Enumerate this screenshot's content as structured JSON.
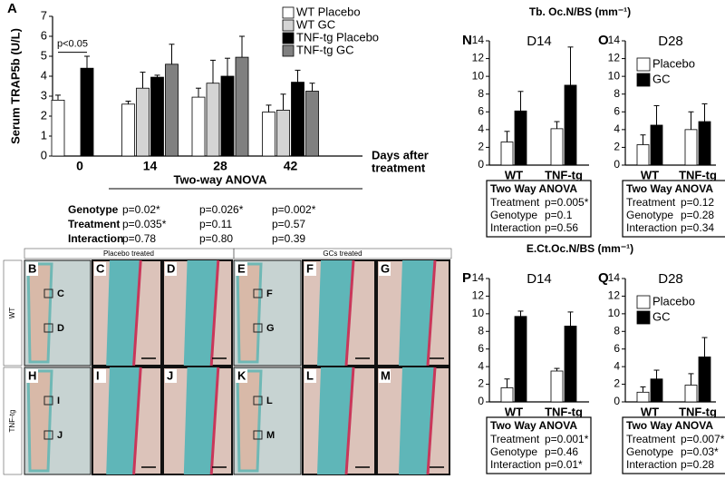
{
  "chart_data": [
    {
      "type": "bar",
      "panel": "A",
      "y_label": "Serum TRAP5b (U/L)",
      "x_label": [
        "Days after",
        "treatment"
      ],
      "categories": [
        "0",
        "14",
        "28",
        "42"
      ],
      "series": [
        {
          "name": "WT Placebo",
          "color": "#ffffff",
          "values": [
            2.8,
            2.6,
            2.95,
            2.2
          ],
          "errors": [
            0.25,
            0.15,
            0.45,
            0.35
          ]
        },
        {
          "name": "WT GC",
          "color": "#d4d4d4",
          "values": [
            null,
            3.4,
            3.65,
            2.3
          ],
          "errors": [
            null,
            0.8,
            1.15,
            0.8
          ]
        },
        {
          "name": "TNF-tg Placebo",
          "color": "#000000",
          "values": [
            4.4,
            3.95,
            4.0,
            3.7
          ],
          "errors": [
            0.6,
            0.1,
            0.9,
            0.6
          ]
        },
        {
          "name": "TNF-tg GC",
          "color": "#808080",
          "values": [
            null,
            4.6,
            4.95,
            3.25
          ],
          "errors": [
            null,
            1.0,
            1.05,
            0.4
          ]
        }
      ],
      "ylim": [
        0,
        7
      ],
      "yticks": [
        0,
        1,
        2,
        3,
        4,
        5,
        6,
        7
      ],
      "legend": "upper right",
      "p_note": "p<0.05",
      "anova_label": "Two-way ANOVA",
      "anova": {
        "rows": [
          [
            "Genotype",
            "p=0.02*",
            "p=0.026*",
            "p=0.002*"
          ],
          [
            "Treatment",
            "p=0.035*",
            "p=0.11",
            "p=0.57"
          ],
          [
            "Interaction",
            "p=0.78",
            "p=0.80",
            "p=0.39"
          ]
        ]
      }
    },
    {
      "type": "bar",
      "panel": "N",
      "title": "D14",
      "categories": [
        "WT",
        "TNF-tg"
      ],
      "series": [
        {
          "color": "#ffffff",
          "values": [
            2.6,
            4.1
          ],
          "errors": [
            1.2,
            0.8
          ]
        },
        {
          "color": "#000000",
          "values": [
            6.1,
            9.0
          ],
          "errors": [
            2.2,
            4.3
          ]
        }
      ],
      "ylim": [
        0,
        14
      ],
      "yticks": [
        0,
        2,
        4,
        6,
        8,
        10,
        12,
        14
      ],
      "anova": {
        "title": "Two Way ANOVA",
        "rows": [
          [
            "Treatment",
            "p=0.005*"
          ],
          [
            "Genotype",
            "p=0.1"
          ],
          [
            "Interaction",
            "p=0.56"
          ]
        ]
      }
    },
    {
      "type": "bar",
      "panel": "O",
      "title": "D28",
      "categories": [
        "WT",
        "TNF-tg"
      ],
      "legend": "upper left",
      "series": [
        {
          "name": "Placebo",
          "color": "#ffffff",
          "values": [
            2.3,
            4.0
          ],
          "errors": [
            1.1,
            2.0
          ]
        },
        {
          "name": "GC",
          "color": "#000000",
          "values": [
            4.5,
            4.9
          ],
          "errors": [
            2.2,
            2.0
          ]
        }
      ],
      "ylim": [
        0,
        14
      ],
      "yticks": [
        0,
        2,
        4,
        6,
        8,
        10,
        12,
        14
      ],
      "anova": {
        "title": "Two Way ANOVA",
        "rows": [
          [
            "Treatment",
            "p=0.12"
          ],
          [
            "Genotype",
            "p=0.28"
          ],
          [
            "Interaction",
            "p=0.34"
          ]
        ]
      }
    },
    {
      "type": "bar",
      "panel": "P",
      "title": "D14",
      "categories": [
        "WT",
        "TNF-tg"
      ],
      "series": [
        {
          "color": "#ffffff",
          "values": [
            1.6,
            3.5
          ],
          "errors": [
            1.0,
            0.3
          ]
        },
        {
          "color": "#000000",
          "values": [
            9.7,
            8.6
          ],
          "errors": [
            0.6,
            1.6
          ]
        }
      ],
      "ylim": [
        0,
        14
      ],
      "yticks": [
        0,
        2,
        4,
        6,
        8,
        10,
        12,
        14
      ],
      "anova": {
        "title": "Two Way ANOVA",
        "rows": [
          [
            "Treatment",
            "p=0.001*"
          ],
          [
            "Genotype",
            "p=0.46"
          ],
          [
            "Interaction",
            "p=0.01*"
          ]
        ]
      }
    },
    {
      "type": "bar",
      "panel": "Q",
      "title": "D28",
      "categories": [
        "WT",
        "TNF-tg"
      ],
      "legend": "upper left",
      "series": [
        {
          "name": "Placebo",
          "color": "#ffffff",
          "values": [
            1.1,
            1.9
          ],
          "errors": [
            0.6,
            1.3
          ]
        },
        {
          "name": "GC",
          "color": "#000000",
          "values": [
            2.6,
            5.1
          ],
          "errors": [
            1.0,
            2.2
          ]
        }
      ],
      "ylim": [
        0,
        14
      ],
      "yticks": [
        0,
        2,
        4,
        6,
        8,
        10,
        12,
        14
      ],
      "anova": {
        "title": "Two Way ANOVA",
        "rows": [
          [
            "Treatment",
            "p=0.007*"
          ],
          [
            "Genotype",
            "p=0.03*"
          ],
          [
            "Interaction",
            "p=0.28"
          ]
        ]
      }
    }
  ],
  "section_titles": [
    "Tb. Oc.N/BS (mm⁻¹)",
    "E.Ct.Oc.N/BS (mm⁻¹)"
  ],
  "histology": {
    "column_headers": [
      "Placebo treated",
      "GCs treated"
    ],
    "row_labels": [
      "WT",
      "TNF-tg"
    ],
    "panels": [
      {
        "letter": "B",
        "insets": [
          "C",
          "D"
        ]
      },
      {
        "letter": "C"
      },
      {
        "letter": "D"
      },
      {
        "letter": "E",
        "insets": [
          "F",
          "G"
        ]
      },
      {
        "letter": "F"
      },
      {
        "letter": "G"
      },
      {
        "letter": "H",
        "insets": [
          "I",
          "J"
        ]
      },
      {
        "letter": "I"
      },
      {
        "letter": "J"
      },
      {
        "letter": "K",
        "insets": [
          "L",
          "M"
        ]
      },
      {
        "letter": "L"
      },
      {
        "letter": "M"
      }
    ]
  }
}
